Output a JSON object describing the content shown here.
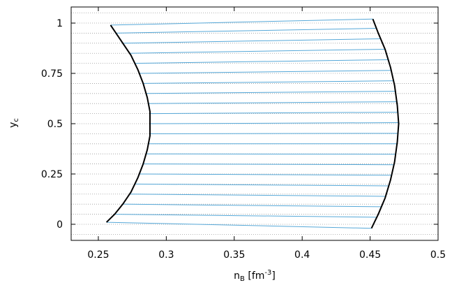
{
  "chart_data": {
    "type": "line",
    "xlabel": "n_B [fm^-3]",
    "ylabel": "y_c",
    "xlim": [
      0.23,
      0.5
    ],
    "ylim": [
      -0.08,
      1.08
    ],
    "xticks": [
      0.25,
      0.3,
      0.35,
      0.4,
      0.45,
      0.5
    ],
    "xtick_labels": [
      "0.25",
      "0.3",
      "0.35",
      "0.4",
      "0.45",
      "0.5"
    ],
    "yticks": [
      0,
      0.25,
      0.5,
      0.75,
      1
    ],
    "ytick_labels": [
      "0",
      "0.25",
      "0.5",
      "0.75",
      "1"
    ],
    "grid": "horizontal dotted every 0.05",
    "boundary_color": "#000000",
    "tieline_color": "#56a8d8",
    "series": [
      {
        "role": "left boundary",
        "x": [
          0.256,
          0.262,
          0.268,
          0.274,
          0.279,
          0.283,
          0.286,
          0.288,
          0.288,
          0.288,
          0.286,
          0.283,
          0.279,
          0.274,
          0.268,
          0.264,
          0.259
        ],
        "y": [
          0.01,
          0.05,
          0.1,
          0.16,
          0.23,
          0.3,
          0.37,
          0.44,
          0.5,
          0.56,
          0.63,
          0.7,
          0.77,
          0.84,
          0.9,
          0.94,
          0.99
        ]
      },
      {
        "role": "right boundary",
        "x": [
          0.451,
          0.456,
          0.461,
          0.465,
          0.468,
          0.47,
          0.471,
          0.47,
          0.468,
          0.465,
          0.461,
          0.456,
          0.452
        ],
        "y": [
          -0.02,
          0.05,
          0.13,
          0.22,
          0.31,
          0.41,
          0.5,
          0.59,
          0.69,
          0.78,
          0.87,
          0.95,
          1.02
        ]
      }
    ],
    "tielines": {
      "y_left": [
        0.01,
        0.05,
        0.1,
        0.15,
        0.2,
        0.25,
        0.3,
        0.35,
        0.4,
        0.45,
        0.5,
        0.55,
        0.6,
        0.65,
        0.7,
        0.75,
        0.8,
        0.85,
        0.9,
        0.95,
        0.99
      ],
      "y_right": [
        -0.02,
        0.035,
        0.087,
        0.139,
        0.191,
        0.244,
        0.296,
        0.348,
        0.4,
        0.452,
        0.505,
        0.557,
        0.609,
        0.661,
        0.713,
        0.765,
        0.818,
        0.87,
        0.922,
        0.974,
        1.02
      ]
    }
  }
}
